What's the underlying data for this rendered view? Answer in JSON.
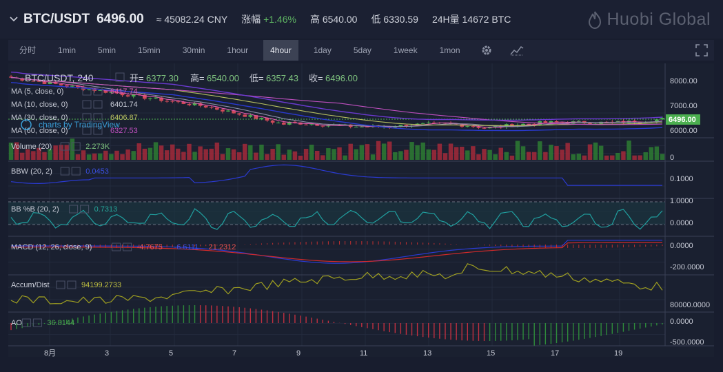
{
  "header": {
    "pair": "BTC/USDT",
    "price": "6496.00",
    "cny": "≈ 45082.24 CNY",
    "change_label": "涨幅",
    "change_value": "+1.46%",
    "high_label": "高",
    "high_value": "6540.00",
    "low_label": "低",
    "low_value": "6330.59",
    "volume_label": "24H量",
    "volume_value": "14672 BTC",
    "logo_text": "Huobi Global"
  },
  "timeframes": [
    "分时",
    "1min",
    "5min",
    "15min",
    "30min",
    "1hour",
    "4hour",
    "1day",
    "5day",
    "1week",
    "1mon"
  ],
  "active_timeframe": "4hour",
  "icons": {
    "chevron": "chevron-down-icon",
    "settings": "gear-icon",
    "indicators": "indicators-icon",
    "fullscreen": "fullscreen-icon",
    "logo": "huobi-flame-icon"
  },
  "colors": {
    "up": "#26a69a",
    "down": "#ef5350",
    "green_candle": "#4caf50",
    "red_candle": "#d14b5a",
    "ma5": "#e05ab0",
    "ma10": "#8a8fa8",
    "ma30": "#b8c060",
    "ma60": "#c050c0",
    "bbw": "#2a3ad0",
    "bbpb": "#20a0a0",
    "macd": "#2a3ad0",
    "signal": "#d02a2a",
    "accum": "#a0a020"
  },
  "chart": {
    "symbol_line": "BTC/USDT, 240",
    "ohlc": {
      "open_label": "开=",
      "open": "6377.30",
      "high_label": "高=",
      "high": "6540.00",
      "low_label": "低=",
      "low": "6357.43",
      "close_label": "收=",
      "close": "6496.00"
    },
    "watermark": "charts by TradingView",
    "ma": [
      {
        "label": "MA (5, close, 0)",
        "value": "6417.74"
      },
      {
        "label": "MA (10, close, 0)",
        "value": "6401.74"
      },
      {
        "label": "MA (30, close, 0)",
        "value": "6406.87"
      },
      {
        "label": "MA (60, close, 0)",
        "value": "6327.53"
      }
    ],
    "price_axis": [
      "8000.00",
      "7000.00",
      "6000.00"
    ],
    "price_tag": "6496.00",
    "panes": [
      {
        "name": "volume",
        "label": "Volume (20)",
        "value": "2.273K",
        "axis": [
          "0"
        ]
      },
      {
        "name": "bbw",
        "label": "BBW (20, 2)",
        "value": "0.0453",
        "axis": [
          "0.1000"
        ]
      },
      {
        "name": "bbpb",
        "label": "BB %B (20, 2)",
        "value": "0.7313",
        "axis": [
          "1.0000",
          "0.0000"
        ]
      },
      {
        "name": "macd",
        "label": "MACD (12, 26, close, 9)",
        "value": "-4.7675",
        "value2": "-6.6111",
        "value3": "21.2312",
        "axis": [
          "0.0000",
          "-200.0000"
        ]
      },
      {
        "name": "accum",
        "label": "Accum/Dist",
        "value": "94199.2733",
        "axis": [
          "80000.0000"
        ]
      },
      {
        "name": "ao",
        "label": "AO",
        "value": "36.8144",
        "axis": [
          "0.0000",
          "-500.0000"
        ]
      }
    ],
    "time_axis": [
      "8月",
      "3",
      "5",
      "7",
      "9",
      "11",
      "13",
      "15",
      "17",
      "19"
    ]
  }
}
